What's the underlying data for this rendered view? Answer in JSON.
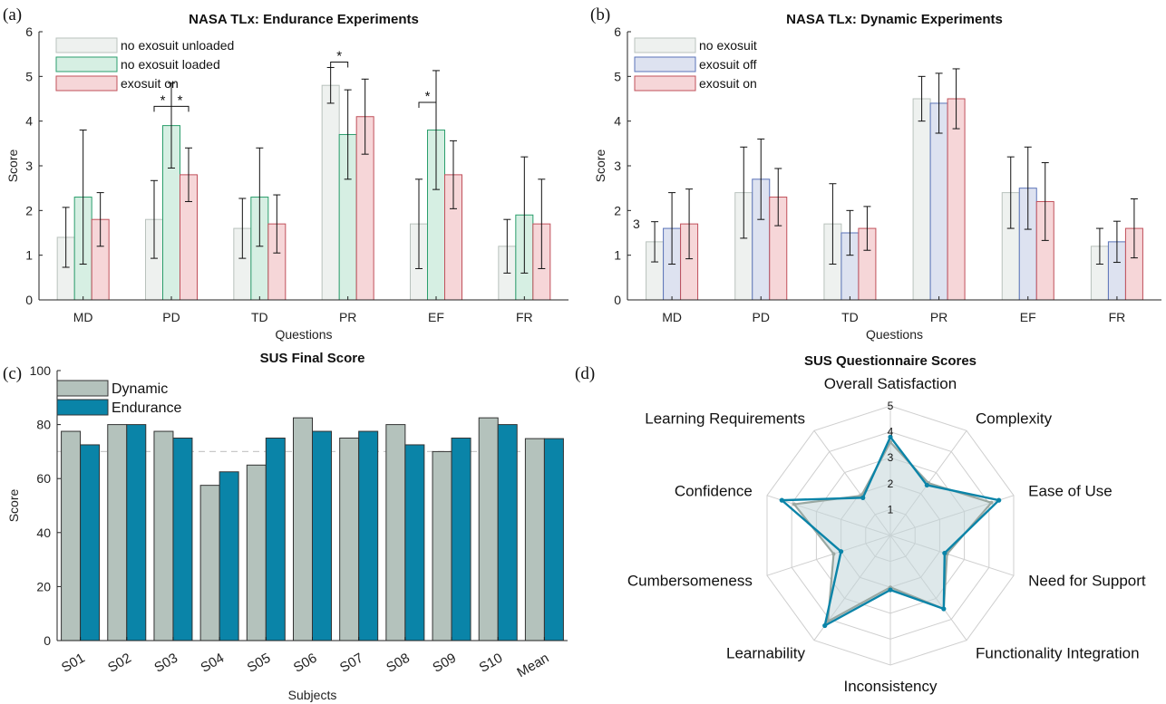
{
  "chart_data": [
    {
      "type": "bar",
      "panel_label": "(a)",
      "title": "NASA TLx: Endurance Experiments",
      "xlabel": "Questions",
      "ylabel": "Score",
      "ylim": [
        0,
        6
      ],
      "yticks": [
        0,
        1,
        2,
        3,
        4,
        5,
        6
      ],
      "categories": [
        "MD",
        "PD",
        "TD",
        "PR",
        "EF",
        "FR"
      ],
      "legend_position": "top-left",
      "series": [
        {
          "name": "no exosuit unloaded",
          "fill": "#eef1ef",
          "stroke": "#b9c2bd",
          "values": [
            1.4,
            1.8,
            1.6,
            4.8,
            1.7,
            1.2
          ],
          "errors": [
            0.67,
            0.87,
            0.67,
            0.4,
            1.0,
            0.6
          ]
        },
        {
          "name": "no exosuit loaded",
          "fill": "#d6efe3",
          "stroke": "#2b9e6c",
          "values": [
            2.3,
            3.9,
            2.3,
            3.7,
            3.8,
            1.9
          ],
          "errors": [
            1.5,
            0.95,
            1.1,
            1.0,
            1.33,
            1.3
          ]
        },
        {
          "name": "exosuit on",
          "fill": "#f6d6d8",
          "stroke": "#c0505a",
          "values": [
            1.8,
            2.8,
            1.7,
            4.1,
            2.8,
            1.7
          ],
          "errors": [
            0.6,
            0.6,
            0.65,
            0.84,
            0.76,
            1.0
          ]
        }
      ],
      "significance": [
        {
          "category": "PD",
          "from": 0,
          "to": 1,
          "y": 4.33,
          "label": "*"
        },
        {
          "category": "PD",
          "from": 1,
          "to": 2,
          "y": 4.33,
          "label": "*"
        },
        {
          "category": "PR",
          "from": 0,
          "to": 1,
          "y": 5.32,
          "label": "*"
        },
        {
          "category": "EF",
          "from": 0,
          "to": 1,
          "y": 4.42,
          "label": "*"
        }
      ]
    },
    {
      "type": "bar",
      "panel_label": "(b)",
      "title": "NASA TLx: Dynamic Experiments",
      "xlabel": "Questions",
      "ylabel": "Score",
      "ylim": [
        0,
        6
      ],
      "yticks": [
        0,
        1,
        2,
        3,
        4,
        5,
        6
      ],
      "categories": [
        "MD",
        "PD",
        "TD",
        "PR",
        "EF",
        "FR"
      ],
      "legend_position": "top-left",
      "annotation": "3",
      "series": [
        {
          "name": "no exosuit",
          "fill": "#eef1ef",
          "stroke": "#b9c2bd",
          "values": [
            1.3,
            2.4,
            1.7,
            4.5,
            2.4,
            1.2
          ],
          "errors": [
            0.45,
            1.02,
            0.9,
            0.5,
            0.8,
            0.4
          ]
        },
        {
          "name": "exosuit off",
          "fill": "#dde2f0",
          "stroke": "#5a73b8",
          "values": [
            1.6,
            2.7,
            1.5,
            4.4,
            2.5,
            1.3
          ],
          "errors": [
            0.8,
            0.9,
            0.5,
            0.67,
            0.92,
            0.46
          ]
        },
        {
          "name": "exosuit on",
          "fill": "#f6d6d8",
          "stroke": "#c0505a",
          "values": [
            1.7,
            2.3,
            1.6,
            4.5,
            2.2,
            1.6
          ],
          "errors": [
            0.78,
            0.64,
            0.49,
            0.67,
            0.87,
            0.66
          ]
        }
      ]
    },
    {
      "type": "bar",
      "panel_label": "(c)",
      "title": "SUS Final Score",
      "xlabel": "Subjects",
      "ylabel": "Score",
      "ylim": [
        0,
        100
      ],
      "yticks": [
        0,
        20,
        40,
        60,
        80,
        100
      ],
      "reference_line": 70,
      "categories": [
        "S01",
        "S02",
        "S03",
        "S04",
        "S05",
        "S06",
        "S07",
        "S08",
        "S09",
        "S10",
        "Mean"
      ],
      "legend_position": "top-left",
      "series": [
        {
          "name": "Dynamic",
          "fill": "#b4c2bc",
          "stroke": "#333333",
          "values": [
            77.5,
            80,
            77.5,
            57.5,
            65,
            82.5,
            75,
            80,
            70,
            82.5,
            74.8
          ]
        },
        {
          "name": "Endurance",
          "fill": "#0a84a8",
          "stroke": "#333333",
          "values": [
            72.5,
            80,
            75,
            62.5,
            75,
            77.5,
            77.5,
            72.5,
            75,
            80,
            74.8
          ]
        }
      ]
    },
    {
      "type": "radar",
      "panel_label": "(d)",
      "title": "SUS Questionnaire Scores",
      "rlim": [
        0,
        5
      ],
      "rticks": [
        1,
        2,
        3,
        4,
        5
      ],
      "axes": [
        "Overall Satisfaction",
        "Complexity",
        "Ease of Use",
        "Need for Support",
        "Functionality Integration",
        "Inconsistency",
        "Learnability",
        "Cumbersomeness",
        "Confidence",
        "Learning Requirements"
      ],
      "series": [
        {
          "color": "#9aa8a2",
          "fill": "#c3d5d8",
          "values": [
            3.6,
            2.5,
            4.1,
            2.3,
            3.5,
            2.0,
            4.1,
            2.3,
            3.9,
            1.9
          ]
        },
        {
          "color": "#0a84a8",
          "fill": "none",
          "values": [
            3.8,
            2.4,
            4.4,
            2.2,
            3.5,
            2.1,
            4.3,
            2.0,
            4.4,
            1.8
          ]
        }
      ]
    }
  ]
}
